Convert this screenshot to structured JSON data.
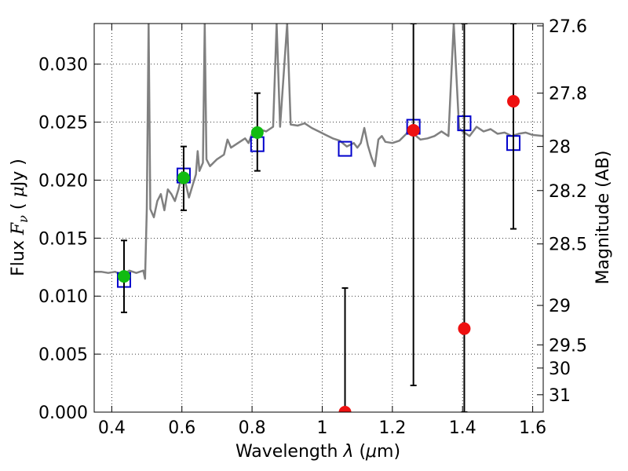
{
  "chart_data": {
    "type": "scatter",
    "xlabel": "Wavelength  λ (μm)",
    "ylabel_left": "Flux  Fν  ( μJy )",
    "ylabel_right": "Magnitude (AB)",
    "xlim": [
      0.35,
      1.63
    ],
    "ylim": [
      0.0,
      0.0335
    ],
    "x_ticks": [
      0.4,
      0.6,
      0.8,
      1.0,
      1.2,
      1.4,
      1.6
    ],
    "x_tick_labels": [
      "0.4",
      "0.6",
      "0.8",
      "1",
      "1.2",
      "1.4",
      "1.6"
    ],
    "y_ticks": [
      0.0,
      0.005,
      0.01,
      0.015,
      0.02,
      0.025,
      0.03
    ],
    "y_tick_labels": [
      "0.000",
      "0.005",
      "0.010",
      "0.015",
      "0.020",
      "0.025",
      "0.030"
    ],
    "right_ticks": [
      {
        "label": "27.6",
        "flux": 0.0333
      },
      {
        "label": "27.8",
        "flux": 0.0275
      },
      {
        "label": "28",
        "flux": 0.0229
      },
      {
        "label": "28.2",
        "flux": 0.0191
      },
      {
        "label": "28.5",
        "flux": 0.0145
      },
      {
        "label": "29",
        "flux": 0.0092
      },
      {
        "label": "29.5",
        "flux": 0.0058
      },
      {
        "label": "30",
        "flux": 0.0038
      },
      {
        "label": "31",
        "flux": 0.0015
      }
    ],
    "grid": true,
    "series": [
      {
        "kind": "line",
        "color": "#808080",
        "points": [
          [
            0.35,
            0.0121
          ],
          [
            0.37,
            0.0121
          ],
          [
            0.39,
            0.012
          ],
          [
            0.41,
            0.0121
          ],
          [
            0.43,
            0.0118
          ],
          [
            0.45,
            0.0122
          ],
          [
            0.47,
            0.012
          ],
          [
            0.49,
            0.0122
          ],
          [
            0.495,
            0.0115
          ],
          [
            0.5,
            0.0175
          ],
          [
            0.505,
            0.0335
          ],
          [
            0.51,
            0.0175
          ],
          [
            0.52,
            0.0168
          ],
          [
            0.53,
            0.0182
          ],
          [
            0.54,
            0.0188
          ],
          [
            0.55,
            0.0174
          ],
          [
            0.56,
            0.0192
          ],
          [
            0.57,
            0.0188
          ],
          [
            0.58,
            0.0182
          ],
          [
            0.59,
            0.0192
          ],
          [
            0.6,
            0.0205
          ],
          [
            0.61,
            0.0198
          ],
          [
            0.62,
            0.0185
          ],
          [
            0.63,
            0.0195
          ],
          [
            0.64,
            0.0205
          ],
          [
            0.645,
            0.0225
          ],
          [
            0.65,
            0.0208
          ],
          [
            0.66,
            0.0215
          ],
          [
            0.665,
            0.0335
          ],
          [
            0.67,
            0.0218
          ],
          [
            0.68,
            0.0212
          ],
          [
            0.7,
            0.0218
          ],
          [
            0.72,
            0.0222
          ],
          [
            0.73,
            0.0235
          ],
          [
            0.74,
            0.0228
          ],
          [
            0.76,
            0.0232
          ],
          [
            0.78,
            0.0236
          ],
          [
            0.79,
            0.0232
          ],
          [
            0.8,
            0.024
          ],
          [
            0.82,
            0.0244
          ],
          [
            0.84,
            0.0242
          ],
          [
            0.86,
            0.0246
          ],
          [
            0.87,
            0.0335
          ],
          [
            0.88,
            0.0246
          ],
          [
            0.9,
            0.0335
          ],
          [
            0.91,
            0.0248
          ],
          [
            0.93,
            0.0247
          ],
          [
            0.95,
            0.0249
          ],
          [
            0.97,
            0.0245
          ],
          [
            0.99,
            0.0242
          ],
          [
            1.01,
            0.0239
          ],
          [
            1.03,
            0.0236
          ],
          [
            1.05,
            0.0234
          ],
          [
            1.07,
            0.0229
          ],
          [
            1.09,
            0.0232
          ],
          [
            1.1,
            0.0228
          ],
          [
            1.11,
            0.0232
          ],
          [
            1.12,
            0.0245
          ],
          [
            1.13,
            0.023
          ],
          [
            1.14,
            0.022
          ],
          [
            1.15,
            0.0212
          ],
          [
            1.16,
            0.0235
          ],
          [
            1.17,
            0.0238
          ],
          [
            1.18,
            0.0233
          ],
          [
            1.2,
            0.0232
          ],
          [
            1.22,
            0.0234
          ],
          [
            1.24,
            0.024
          ],
          [
            1.25,
            0.0245
          ],
          [
            1.26,
            0.024
          ],
          [
            1.28,
            0.0235
          ],
          [
            1.3,
            0.0236
          ],
          [
            1.32,
            0.0238
          ],
          [
            1.34,
            0.0242
          ],
          [
            1.36,
            0.0238
          ],
          [
            1.375,
            0.0335
          ],
          [
            1.39,
            0.0245
          ],
          [
            1.4,
            0.0242
          ],
          [
            1.42,
            0.0238
          ],
          [
            1.44,
            0.0246
          ],
          [
            1.46,
            0.0242
          ],
          [
            1.48,
            0.0244
          ],
          [
            1.5,
            0.024
          ],
          [
            1.52,
            0.0241
          ],
          [
            1.54,
            0.0238
          ],
          [
            1.56,
            0.024
          ],
          [
            1.58,
            0.0241
          ],
          [
            1.6,
            0.0239
          ],
          [
            1.63,
            0.0238
          ]
        ]
      },
      {
        "kind": "points",
        "marker": "open-square",
        "color": "#0000cc",
        "points": [
          [
            0.435,
            0.0114
          ],
          [
            0.605,
            0.0204
          ],
          [
            0.815,
            0.0231
          ],
          [
            1.065,
            0.0227
          ],
          [
            1.26,
            0.0246
          ],
          [
            1.405,
            0.0249
          ],
          [
            1.545,
            0.0232
          ]
        ]
      },
      {
        "kind": "points",
        "marker": "filled-circle",
        "color": "#11bb11",
        "points": [
          {
            "x": 0.435,
            "y": 0.0117,
            "err": [
              0.0086,
              0.0148
            ]
          },
          {
            "x": 0.605,
            "y": 0.0202,
            "err": [
              0.0174,
              0.0229
            ]
          },
          {
            "x": 0.815,
            "y": 0.0241,
            "err": [
              0.0208,
              0.0275
            ]
          }
        ]
      },
      {
        "kind": "points",
        "marker": "filled-circle",
        "color": "#ee1111",
        "points": [
          {
            "x": 1.065,
            "y": 0.0,
            "err": [
              0.0,
              0.0107
            ]
          },
          {
            "x": 1.26,
            "y": 0.0243,
            "err": [
              0.0023,
              0.0335
            ]
          },
          {
            "x": 1.405,
            "y": 0.0072,
            "err": [
              0.0,
              0.0335
            ]
          },
          {
            "x": 1.545,
            "y": 0.0268,
            "err": [
              0.0158,
              0.0335
            ]
          }
        ]
      }
    ]
  }
}
